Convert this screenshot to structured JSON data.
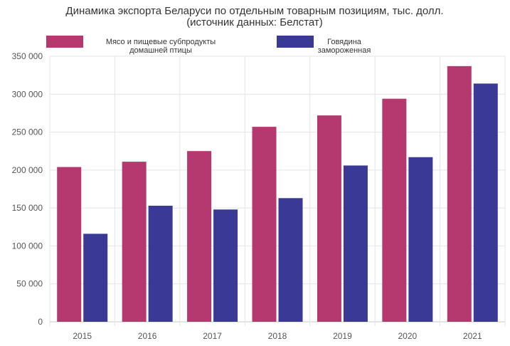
{
  "title": {
    "line1": "Динамика экспорта Беларуси по отдельным товарным позициям, тыс. долл.",
    "line2": "(источник данных: Белстат)"
  },
  "chart_data": {
    "type": "bar",
    "categories": [
      "2015",
      "2016",
      "2017",
      "2018",
      "2019",
      "2020",
      "2021"
    ],
    "series": [
      {
        "name": "Мясо и пищевые субпродукты домашней птицы",
        "name_lines": [
          "Мясо и пищевые субпродукты",
          "домашней птицы"
        ],
        "color": "#b5386e",
        "values": [
          204000,
          211000,
          225000,
          257000,
          272000,
          294000,
          337000
        ]
      },
      {
        "name": "Говядина замороженная",
        "name_lines": [
          "Говядина",
          "замороженная"
        ],
        "color": "#3a3a96",
        "values": [
          116000,
          153000,
          148000,
          163000,
          206000,
          217000,
          314000
        ]
      }
    ],
    "ylim": [
      0,
      350000
    ],
    "yticks": [
      0,
      50000,
      100000,
      150000,
      200000,
      250000,
      300000,
      350000
    ],
    "ytick_labels": [
      "0",
      "50 000",
      "100 000",
      "150 000",
      "200 000",
      "250 000",
      "300 000",
      "350 000"
    ],
    "grid": true,
    "legend": "top-left"
  }
}
